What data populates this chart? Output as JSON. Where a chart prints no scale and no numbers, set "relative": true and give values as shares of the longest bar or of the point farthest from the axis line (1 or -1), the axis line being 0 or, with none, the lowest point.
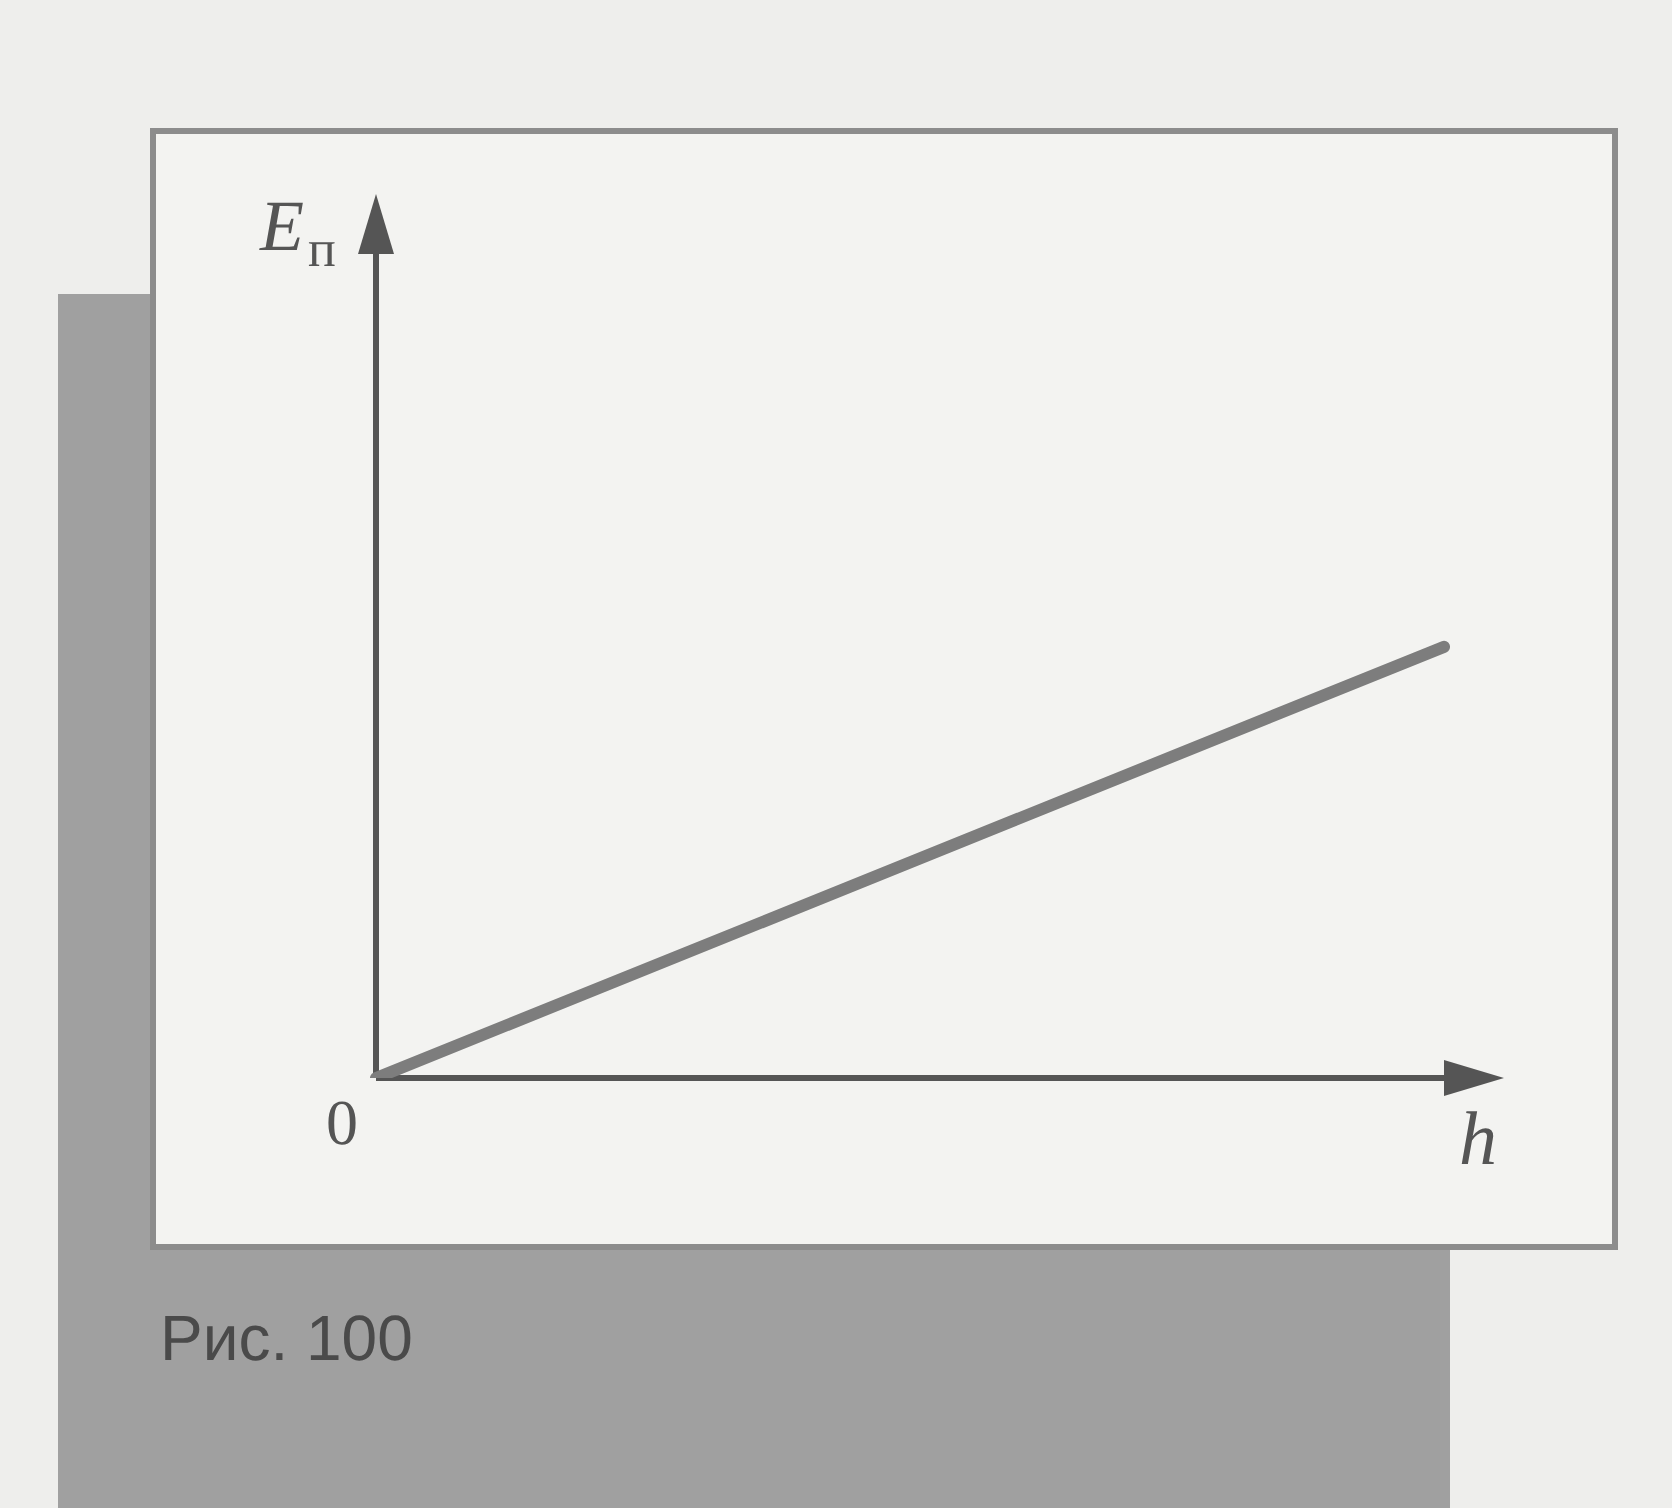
{
  "chart_data": {
    "type": "line",
    "xlabel": "h",
    "categories": [
      null,
      null
    ],
    "values": [
      0,
      1
    ],
    "color": "#7d7d7d",
    "relative": true,
    "marker": "none",
    "annotations": [
      "E$_{п}$",
      "0",
      "Рис. 100"
    ]
  }
}
